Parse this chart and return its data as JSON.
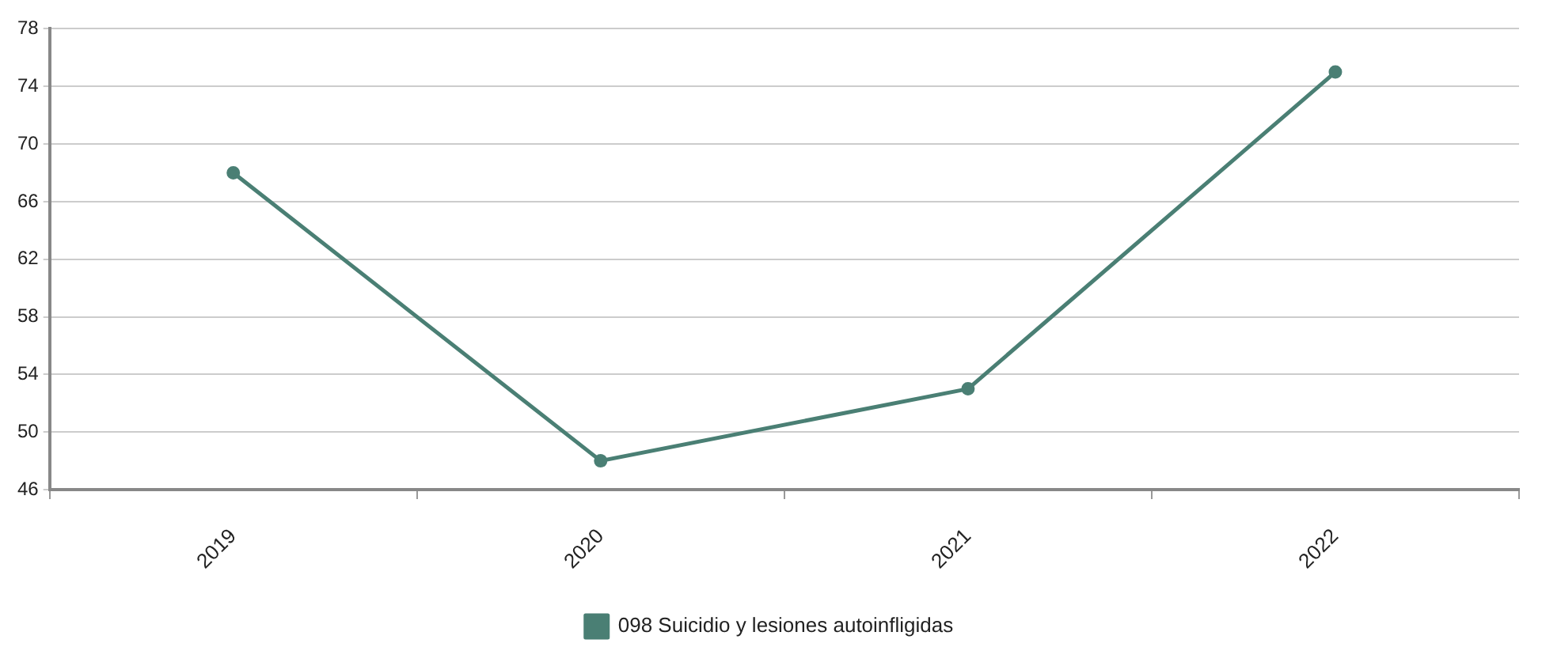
{
  "chart_data": {
    "type": "line",
    "categories": [
      "2019",
      "2020",
      "2021",
      "2022"
    ],
    "series": [
      {
        "name": "098 Suicidio y lesiones autoinfligidas",
        "color": "#4a7f74",
        "values": [
          68,
          48,
          53,
          75
        ]
      }
    ],
    "ylim": [
      46,
      78
    ],
    "yticks": [
      46,
      50,
      54,
      58,
      62,
      66,
      70,
      74,
      78
    ],
    "grid": "y",
    "legend": "bottom",
    "marker": "circle",
    "line_style": "solid"
  }
}
